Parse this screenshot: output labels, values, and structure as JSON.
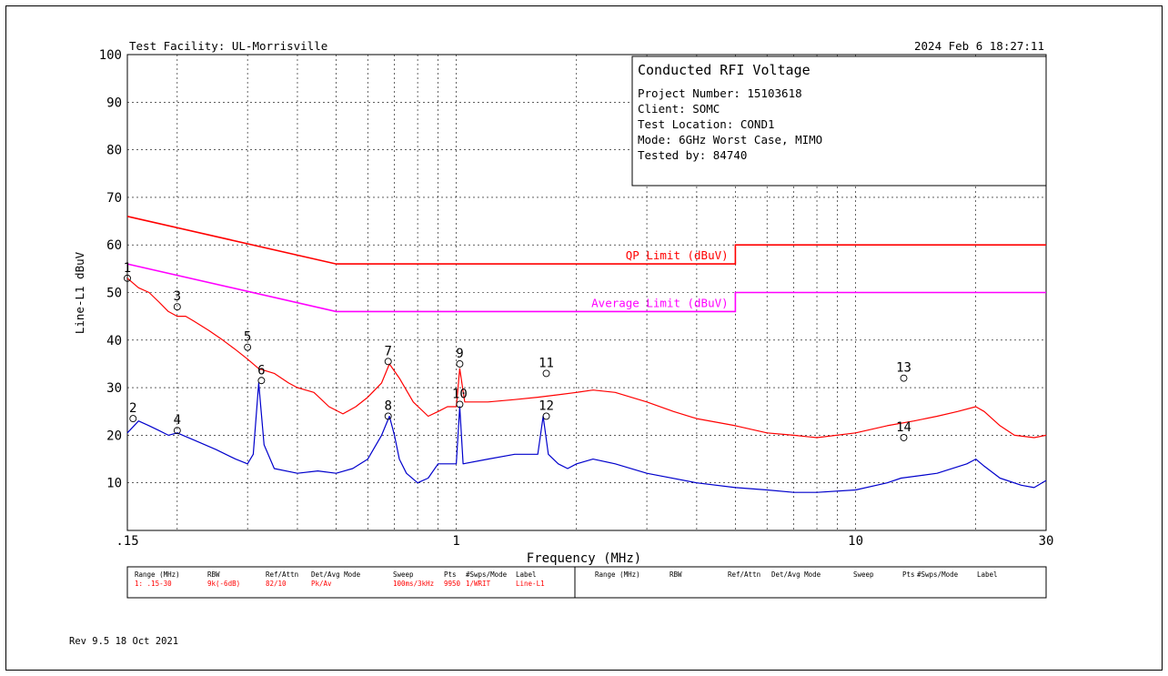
{
  "header": {
    "facility": "Test Facility:  UL-Morrisville",
    "datetime": "2024 Feb 6    18:27:11"
  },
  "info_box": {
    "title": "Conducted RFI Voltage",
    "lines": [
      "Project Number: 15103618",
      "Client: SOMC",
      "Test Location: COND1",
      "Mode: 6GHz Worst Case, MIMO",
      "Tested by: 84740"
    ]
  },
  "chart_data": {
    "type": "line",
    "xlabel": "Frequency (MHz)",
    "ylabel": "Line-L1 dBuV",
    "x_scale": "log",
    "xlim": [
      0.15,
      30
    ],
    "ylim": [
      0,
      100
    ],
    "grid": true,
    "x_tick_labels": [
      {
        "value": 0.15,
        "label": ".15"
      },
      {
        "value": 1,
        "label": "1"
      },
      {
        "value": 10,
        "label": "10"
      },
      {
        "value": 30,
        "label": "30"
      }
    ],
    "y_ticks": [
      10,
      20,
      30,
      40,
      50,
      60,
      70,
      80,
      90,
      100
    ],
    "limits": [
      {
        "label": "QP Limit (dBuV)",
        "color": "#ff0000",
        "points": [
          [
            0.15,
            66
          ],
          [
            0.5,
            56
          ],
          [
            5,
            56
          ],
          [
            5,
            60
          ],
          [
            30,
            60
          ]
        ]
      },
      {
        "label": "Average Limit (dBuV)",
        "color": "#ff00ff",
        "points": [
          [
            0.15,
            56
          ],
          [
            0.5,
            46
          ],
          [
            5,
            46
          ],
          [
            5,
            50
          ],
          [
            30,
            50
          ]
        ]
      }
    ],
    "series": [
      {
        "color": "#ff0000",
        "points": [
          [
            0.15,
            53
          ],
          [
            0.16,
            51
          ],
          [
            0.17,
            50
          ],
          [
            0.18,
            48
          ],
          [
            0.19,
            46
          ],
          [
            0.2,
            45
          ],
          [
            0.21,
            45
          ],
          [
            0.22,
            44
          ],
          [
            0.24,
            42
          ],
          [
            0.26,
            40
          ],
          [
            0.28,
            38
          ],
          [
            0.3,
            36
          ],
          [
            0.32,
            34
          ],
          [
            0.35,
            33
          ],
          [
            0.38,
            31
          ],
          [
            0.4,
            30
          ],
          [
            0.44,
            29
          ],
          [
            0.48,
            26
          ],
          [
            0.52,
            24.5
          ],
          [
            0.56,
            26
          ],
          [
            0.6,
            28
          ],
          [
            0.65,
            31
          ],
          [
            0.68,
            35
          ],
          [
            0.72,
            32
          ],
          [
            0.78,
            27
          ],
          [
            0.85,
            24
          ],
          [
            0.9,
            25
          ],
          [
            0.95,
            26
          ],
          [
            1.0,
            26
          ],
          [
            1.02,
            34
          ],
          [
            1.05,
            27
          ],
          [
            1.2,
            27
          ],
          [
            1.4,
            27.5
          ],
          [
            1.6,
            28
          ],
          [
            1.8,
            28.5
          ],
          [
            2.0,
            29
          ],
          [
            2.2,
            29.5
          ],
          [
            2.5,
            29
          ],
          [
            3.0,
            27
          ],
          [
            3.5,
            25
          ],
          [
            4.0,
            23.5
          ],
          [
            5.0,
            22
          ],
          [
            6.0,
            20.5
          ],
          [
            7.0,
            20
          ],
          [
            8.0,
            19.5
          ],
          [
            10.0,
            20.5
          ],
          [
            12.0,
            22
          ],
          [
            14.0,
            23
          ],
          [
            16.0,
            24
          ],
          [
            18.0,
            25
          ],
          [
            20.0,
            26
          ],
          [
            21.0,
            25
          ],
          [
            23.0,
            22
          ],
          [
            25.0,
            20
          ],
          [
            28.0,
            19.5
          ],
          [
            30.0,
            20
          ]
        ]
      },
      {
        "color": "#0000cc",
        "points": [
          [
            0.15,
            20.5
          ],
          [
            0.16,
            23
          ],
          [
            0.17,
            22
          ],
          [
            0.18,
            21
          ],
          [
            0.19,
            20
          ],
          [
            0.2,
            20.5
          ],
          [
            0.22,
            19
          ],
          [
            0.25,
            17
          ],
          [
            0.28,
            15
          ],
          [
            0.3,
            14
          ],
          [
            0.31,
            16
          ],
          [
            0.32,
            31
          ],
          [
            0.33,
            18
          ],
          [
            0.35,
            13
          ],
          [
            0.4,
            12
          ],
          [
            0.45,
            12.5
          ],
          [
            0.5,
            12
          ],
          [
            0.55,
            13
          ],
          [
            0.6,
            15
          ],
          [
            0.65,
            20
          ],
          [
            0.68,
            24
          ],
          [
            0.7,
            20
          ],
          [
            0.72,
            15
          ],
          [
            0.75,
            12
          ],
          [
            0.8,
            10
          ],
          [
            0.85,
            11
          ],
          [
            0.9,
            14
          ],
          [
            0.95,
            14
          ],
          [
            1.0,
            14
          ],
          [
            1.02,
            26
          ],
          [
            1.04,
            14
          ],
          [
            1.2,
            15
          ],
          [
            1.4,
            16
          ],
          [
            1.6,
            16
          ],
          [
            1.65,
            24
          ],
          [
            1.7,
            16
          ],
          [
            1.8,
            14
          ],
          [
            1.9,
            13
          ],
          [
            2.0,
            14
          ],
          [
            2.2,
            15
          ],
          [
            2.5,
            14
          ],
          [
            3.0,
            12
          ],
          [
            4.0,
            10
          ],
          [
            5.0,
            9
          ],
          [
            6.0,
            8.5
          ],
          [
            7.0,
            8
          ],
          [
            8.0,
            8
          ],
          [
            10.0,
            8.5
          ],
          [
            12.0,
            10
          ],
          [
            13.0,
            11
          ],
          [
            16.0,
            12
          ],
          [
            19.0,
            14
          ],
          [
            20.0,
            15
          ],
          [
            21.0,
            13.5
          ],
          [
            23.0,
            11
          ],
          [
            26.0,
            9.5
          ],
          [
            28.0,
            9
          ],
          [
            30.0,
            10.5
          ]
        ]
      }
    ],
    "markers": [
      {
        "label": "1",
        "x": 0.15,
        "y": 53,
        "color": "#ff0000"
      },
      {
        "label": "2",
        "x": 0.155,
        "y": 23.5,
        "color": "#0000cc"
      },
      {
        "label": "3",
        "x": 0.2,
        "y": 47,
        "color": "#ff0000"
      },
      {
        "label": "4",
        "x": 0.2,
        "y": 21,
        "color": "#0000cc"
      },
      {
        "label": "5",
        "x": 0.3,
        "y": 38.5,
        "color": "#ff0000"
      },
      {
        "label": "6",
        "x": 0.325,
        "y": 31.5,
        "color": "#0000cc"
      },
      {
        "label": "7",
        "x": 0.675,
        "y": 35.5,
        "color": "#ff0000"
      },
      {
        "label": "8",
        "x": 0.675,
        "y": 24,
        "color": "#0000cc"
      },
      {
        "label": "9",
        "x": 1.02,
        "y": 35,
        "color": "#ff0000"
      },
      {
        "label": "10",
        "x": 1.02,
        "y": 26.5,
        "color": "#0000cc"
      },
      {
        "label": "11",
        "x": 1.68,
        "y": 33,
        "color": "#ff0000"
      },
      {
        "label": "12",
        "x": 1.68,
        "y": 24,
        "color": "#0000cc"
      },
      {
        "label": "13",
        "x": 13.2,
        "y": 32,
        "color": "#ff0000"
      },
      {
        "label": "14",
        "x": 13.2,
        "y": 19.5,
        "color": "#0000cc"
      }
    ]
  },
  "settings_table": {
    "headers": [
      "Range (MHz)",
      "RBW",
      "Ref/Attn",
      "Det/Avg Mode",
      "Sweep",
      "Pts",
      "#Swps/Mode",
      "Label"
    ],
    "row": [
      "1: .15-30",
      "9k(-6dB)",
      "82/10",
      "Pk/Av",
      "100ms/3kHz",
      "9950",
      "1/WRIT",
      "Line-L1"
    ]
  },
  "footer": {
    "revision": "Rev 9.5 18 Oct 2021"
  }
}
